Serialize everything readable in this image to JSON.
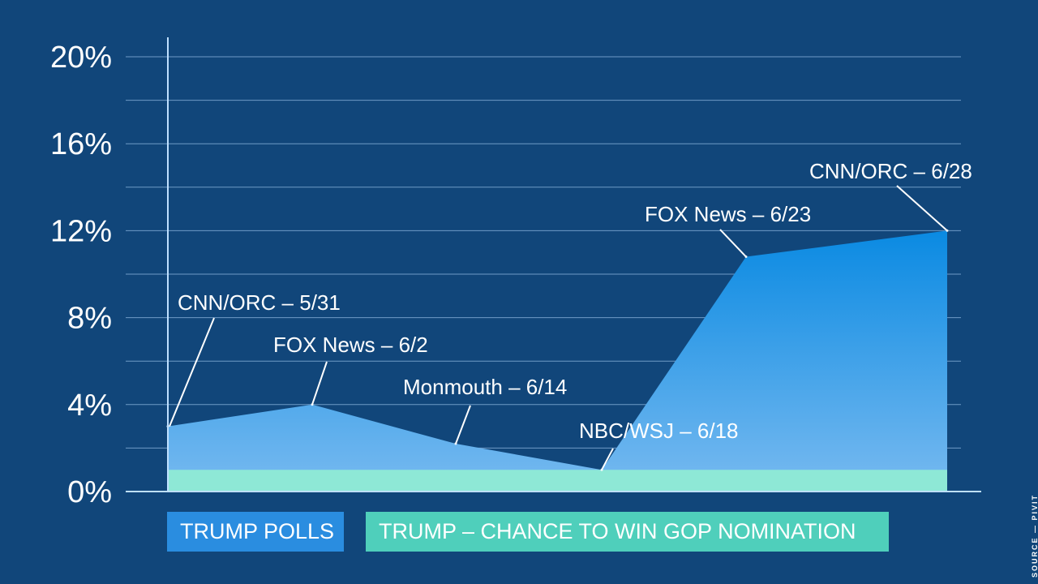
{
  "chart_data": {
    "type": "area",
    "ylim": [
      0,
      20
    ],
    "y_ticks": [
      "0%",
      "4%",
      "8%",
      "12%",
      "16%",
      "20%"
    ],
    "y_tick_values": [
      0,
      4,
      8,
      12,
      16,
      20
    ],
    "grid": true,
    "colors": {
      "background": "#11467a",
      "polls_top": "#0a8ae2",
      "polls_bottom": "#78baf0",
      "chance": "#8ee8d6",
      "grid": "#8fb8e0",
      "axis": "#bfe0ff"
    },
    "series": [
      {
        "name": "TRUMP POLLS",
        "points": [
          {
            "label": "CNN/ORC – 5/31",
            "value": 3.0
          },
          {
            "label": "FOX News – 6/2",
            "value": 4.0
          },
          {
            "label": "Monmouth – 6/14",
            "value": 2.2
          },
          {
            "label": "NBC/WSJ – 6/18",
            "value": 1.0
          },
          {
            "label": "FOX News – 6/23",
            "value": 10.8
          },
          {
            "label": "CNN/ORC – 6/28",
            "value": 12.0
          }
        ]
      },
      {
        "name": "TRUMP – CHANCE TO WIN GOP NOMINATION",
        "points": [
          {
            "label": "",
            "value": 1.0
          },
          {
            "label": "",
            "value": 1.0
          },
          {
            "label": "",
            "value": 1.0
          },
          {
            "label": "",
            "value": 1.0
          },
          {
            "label": "",
            "value": 1.0
          },
          {
            "label": "",
            "value": 1.0
          }
        ]
      }
    ]
  },
  "legend": {
    "polls": "TRUMP POLLS",
    "chance": "TRUMP – CHANCE TO WIN GOP NOMINATION"
  },
  "source": "SOURCE — PIVIT"
}
